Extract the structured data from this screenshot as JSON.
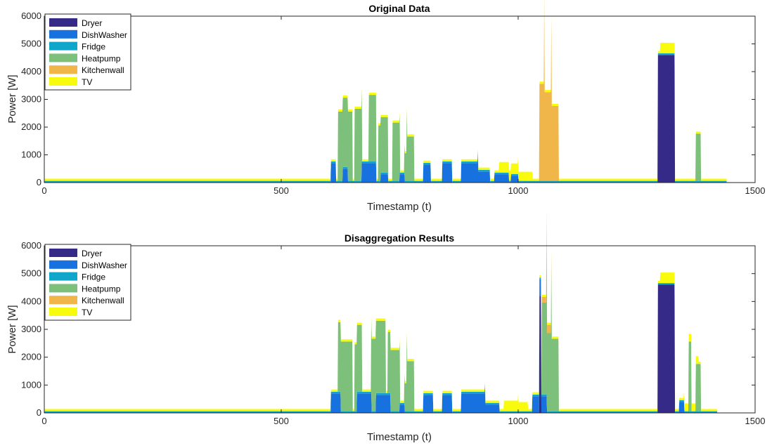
{
  "appliances": [
    "Dryer",
    "DishWasher",
    "Fridge",
    "Heatpump",
    "Kitchenwall",
    "TV"
  ],
  "colors": {
    "Dryer": "#352a87",
    "DishWasher": "#1771de",
    "Fridge": "#0fa6c9",
    "Heatpump": "#7cc07c",
    "Kitchenwall": "#f0b64a",
    "TV": "#f9fb0e"
  },
  "chart_data": [
    {
      "type": "area",
      "stacked": true,
      "title": "Original Data",
      "xlabel": "Timestamp (t)",
      "ylabel": "Power [W]",
      "xlim": [
        0,
        1500
      ],
      "ylim": [
        0,
        6000
      ],
      "xticks": [
        "0",
        "500",
        "1000",
        "1500"
      ],
      "yticks": [
        "0",
        "1000",
        "2000",
        "3000",
        "4000",
        "5000",
        "6000"
      ],
      "legend": "top-left",
      "grid": false,
      "x_range": [
        0,
        1440
      ],
      "series": [
        {
          "name": "Dryer",
          "segments": [
            [
              1295,
              1330,
              4600
            ]
          ]
        },
        {
          "name": "DishWasher",
          "segments": [
            [
              605,
              615,
              700
            ],
            [
              630,
              640,
              500
            ],
            [
              670,
              700,
              700
            ],
            [
              710,
              725,
              300
            ],
            [
              750,
              760,
              300
            ],
            [
              800,
              815,
              650
            ],
            [
              840,
              860,
              700
            ],
            [
              880,
              915,
              700
            ],
            [
              915,
              940,
              400
            ],
            [
              950,
              980,
              300
            ],
            [
              985,
              1000,
              250
            ]
          ]
        },
        {
          "name": "Fridge",
          "segments": [
            [
              0,
              1440,
              60
            ]
          ]
        },
        {
          "name": "Heatpump",
          "segments": [
            [
              620,
              650,
              2500
            ],
            [
              655,
              670,
              2600
            ],
            [
              685,
              700,
              2400
            ],
            [
              705,
              725,
              2000
            ],
            [
              735,
              750,
              2100
            ],
            [
              760,
              765,
              1000
            ],
            [
              765,
              780,
              1600
            ],
            [
              1375,
              1385,
              1700
            ]
          ]
        },
        {
          "name": "Kitchenwall",
          "segments": [
            [
              1045,
              1055,
              3500
            ],
            [
              1055,
              1070,
              3200
            ],
            [
              1070,
              1085,
              2700
            ]
          ]
        },
        {
          "name": "TV",
          "segments": [
            [
              0,
              1440,
              80
            ],
            [
              960,
              1000,
              300
            ],
            [
              1000,
              1030,
              250
            ],
            [
              1300,
              1330,
              300
            ]
          ]
        }
      ]
    },
    {
      "type": "area",
      "stacked": true,
      "title": "Disaggregation Results",
      "xlabel": "Timestamp (t)",
      "ylabel": "Power [W]",
      "xlim": [
        0,
        1500
      ],
      "ylim": [
        0,
        6000
      ],
      "xticks": [
        "0",
        "500",
        "1000",
        "1500"
      ],
      "yticks": [
        "0",
        "1000",
        "2000",
        "3000",
        "4000",
        "5000",
        "6000"
      ],
      "legend": "top-left",
      "grid": false,
      "x_range": [
        0,
        1420
      ],
      "series": [
        {
          "name": "Dryer",
          "segments": [
            [
              1045,
              1048,
              4200
            ],
            [
              1295,
              1330,
              4600
            ]
          ]
        },
        {
          "name": "DishWasher",
          "segments": [
            [
              605,
              625,
              700
            ],
            [
              660,
              690,
              700
            ],
            [
              700,
              730,
              650
            ],
            [
              750,
              760,
              300
            ],
            [
              800,
              820,
              650
            ],
            [
              840,
              860,
              650
            ],
            [
              880,
              930,
              700
            ],
            [
              930,
              960,
              300
            ],
            [
              1030,
              1060,
              600
            ],
            [
              1340,
              1350,
              400
            ]
          ]
        },
        {
          "name": "Fridge",
          "segments": [
            [
              0,
              1420,
              60
            ]
          ]
        },
        {
          "name": "Heatpump",
          "segments": [
            [
              620,
              650,
              2500
            ],
            [
              655,
              670,
              2400
            ],
            [
              690,
              720,
              2600
            ],
            [
              725,
              750,
              2200
            ],
            [
              760,
              765,
              1000
            ],
            [
              765,
              780,
              1800
            ],
            [
              1050,
              1060,
              3300
            ],
            [
              1060,
              1070,
              2800
            ],
            [
              1070,
              1085,
              2600
            ],
            [
              1360,
              1365,
              2500
            ],
            [
              1375,
              1385,
              1700
            ]
          ]
        },
        {
          "name": "Kitchenwall",
          "segments": [
            [
              1050,
              1060,
              200
            ],
            [
              1060,
              1070,
              300
            ]
          ]
        },
        {
          "name": "TV",
          "segments": [
            [
              0,
              1420,
              80
            ],
            [
              970,
              1000,
              300
            ],
            [
              1000,
              1020,
              250
            ],
            [
              1300,
              1330,
              300
            ],
            [
              1350,
              1380,
              200
            ]
          ]
        }
      ]
    }
  ]
}
